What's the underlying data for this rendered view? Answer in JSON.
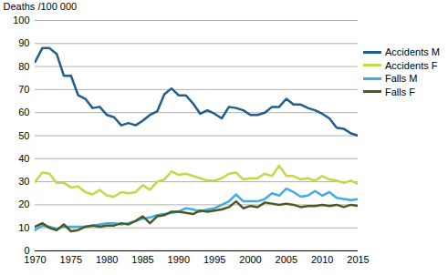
{
  "chart_data": {
    "type": "line",
    "y_label": "Deaths /100 000",
    "x": [
      1970,
      1971,
      1972,
      1973,
      1974,
      1975,
      1976,
      1977,
      1978,
      1979,
      1980,
      1981,
      1982,
      1983,
      1984,
      1985,
      1986,
      1987,
      1988,
      1989,
      1990,
      1991,
      1992,
      1993,
      1994,
      1995,
      1996,
      1997,
      1998,
      1999,
      2000,
      2001,
      2002,
      2003,
      2004,
      2005,
      2006,
      2007,
      2008,
      2009,
      2010,
      2011,
      2012,
      2013,
      2014,
      2015
    ],
    "series": [
      {
        "name": "Accidents M",
        "color": "#1f5e8e",
        "values": [
          82,
          88,
          88,
          85.5,
          76,
          76,
          67.5,
          66,
          62,
          62.5,
          59,
          58,
          54.5,
          55.5,
          54.5,
          56.5,
          59,
          60.5,
          68,
          70.5,
          67.5,
          67.5,
          64,
          59.5,
          61,
          59.5,
          57.5,
          62.5,
          62,
          61,
          59,
          59,
          60,
          62.5,
          62.5,
          66,
          63.5,
          63.5,
          62,
          61,
          59.5,
          57.5,
          53.5,
          53,
          51,
          50
        ]
      },
      {
        "name": "Accidents F",
        "color": "#c3d847",
        "values": [
          30,
          34,
          33.5,
          29.5,
          29.5,
          27.5,
          28,
          25.5,
          24.5,
          26.5,
          24,
          23.5,
          25.5,
          25,
          25.5,
          28.5,
          26.5,
          30,
          31,
          34.5,
          33,
          33.5,
          32.5,
          31.5,
          30.5,
          30.5,
          31.5,
          33.5,
          34,
          31,
          31.5,
          31.5,
          33.5,
          32.5,
          37,
          32.5,
          32.5,
          31,
          31.5,
          30.5,
          32.5,
          31,
          30.5,
          29.5,
          30.5,
          29
        ]
      },
      {
        "name": "Falls M",
        "color": "#41ace0",
        "values": [
          9,
          11,
          10.5,
          9.5,
          10.5,
          10.5,
          10.5,
          10.5,
          11,
          11.5,
          12,
          12,
          11.5,
          12,
          13,
          14,
          14.5,
          15.5,
          16,
          16.5,
          17,
          18.5,
          18,
          17,
          18,
          18.5,
          20,
          21.5,
          24.5,
          21.5,
          21.5,
          21.5,
          22.5,
          25,
          24,
          27,
          25.5,
          23.5,
          24,
          26,
          24,
          25.5,
          23,
          22.5,
          22,
          22.5
        ]
      },
      {
        "name": "Falls F",
        "color": "#4b5a25",
        "values": [
          10.5,
          12,
          10,
          9,
          11.5,
          8.5,
          9,
          10.5,
          11,
          10.5,
          11,
          11,
          12,
          11.5,
          13,
          15,
          12,
          15,
          15.5,
          17,
          17,
          16.5,
          16,
          17.5,
          17,
          17.5,
          18,
          19,
          21.5,
          18.5,
          19.5,
          19,
          21,
          20.5,
          20,
          20.5,
          20,
          19,
          19.5,
          19.5,
          20,
          19.5,
          20,
          19,
          20,
          19.5
        ]
      }
    ],
    "xlim": [
      1970,
      2015
    ],
    "xticks": [
      1970,
      1975,
      1980,
      1985,
      1990,
      1995,
      2000,
      2005,
      2010,
      2015
    ],
    "ylim": [
      0,
      100
    ],
    "yticks": [
      0,
      10,
      20,
      30,
      40,
      50,
      60,
      70,
      80,
      90,
      100
    ],
    "grid": true,
    "legend": "right"
  }
}
